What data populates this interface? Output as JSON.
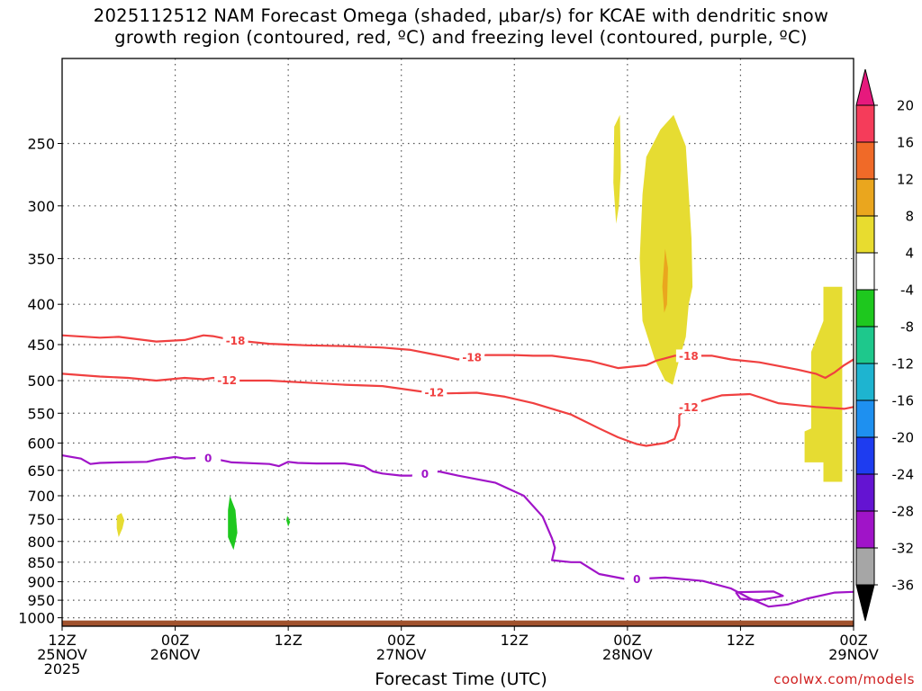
{
  "chart_data": {
    "type": "contour",
    "title": [
      "2025112512 NAM Forecast Omega (shaded, μbar/s) for KCAE with dendritic snow",
      "growth region (contoured, red, ºC) and freezing level (contoured, purple, ºC)"
    ],
    "xlabel": "Forecast Time (UTC)",
    "ylabel": "",
    "credit": "coolwx.com/models",
    "x_ticks": [
      {
        "h": 0,
        "l1": "12Z",
        "l2": "25NOV",
        "l3": "2025"
      },
      {
        "h": 12,
        "l1": "00Z",
        "l2": "26NOV",
        "l3": ""
      },
      {
        "h": 24,
        "l1": "12Z",
        "l2": "",
        "l3": ""
      },
      {
        "h": 36,
        "l1": "00Z",
        "l2": "27NOV",
        "l3": ""
      },
      {
        "h": 48,
        "l1": "12Z",
        "l2": "",
        "l3": ""
      },
      {
        "h": 60,
        "l1": "00Z",
        "l2": "28NOV",
        "l3": ""
      },
      {
        "h": 72,
        "l1": "12Z",
        "l2": "",
        "l3": ""
      },
      {
        "h": 84,
        "l1": "00Z",
        "l2": "29NOV",
        "l3": ""
      }
    ],
    "y_ticks": [
      250,
      300,
      350,
      400,
      450,
      500,
      550,
      600,
      650,
      700,
      750,
      800,
      850,
      900,
      950,
      1000
    ],
    "y_range_hPa": [
      195,
      1025
    ],
    "x_range_hours": [
      0,
      84
    ],
    "grid": true,
    "colorbar": {
      "labels": [
        "20",
        "16",
        "12",
        "8",
        "4",
        "-4",
        "-8",
        "-12",
        "-16",
        "-20",
        "-24",
        "-28",
        "-32",
        "-36"
      ],
      "colors": [
        "#f53c5a",
        "#f06a28",
        "#eaa61e",
        "#e8dc2f",
        "#ffffff",
        "#1ec81e",
        "#1ec88c",
        "#1eb4d0",
        "#1e90f0",
        "#1e3cf0",
        "#6414d2",
        "#a014c8",
        "#a6a6a6"
      ],
      "top_arrow": "#e6197d",
      "bottom_arrow": "#000000"
    },
    "contours": [
      {
        "name": "-18",
        "color": "#f04040",
        "labels_at_hours": [
          18.4,
          43.5,
          66.5
        ],
        "points": [
          [
            0,
            438
          ],
          [
            4,
            441
          ],
          [
            6,
            440
          ],
          [
            10,
            446
          ],
          [
            13,
            444
          ],
          [
            15,
            438
          ],
          [
            16,
            439
          ],
          [
            18,
            444
          ],
          [
            22,
            449
          ],
          [
            26,
            451
          ],
          [
            30,
            452
          ],
          [
            34,
            454
          ],
          [
            37,
            457
          ],
          [
            39,
            462
          ],
          [
            41,
            467
          ],
          [
            42,
            470
          ],
          [
            45,
            464
          ],
          [
            48,
            464
          ],
          [
            50,
            465
          ],
          [
            52,
            465
          ],
          [
            56,
            472
          ],
          [
            59,
            482
          ],
          [
            62,
            478
          ],
          [
            63,
            472
          ],
          [
            65,
            465
          ],
          [
            69,
            465
          ],
          [
            71,
            470
          ],
          [
            74,
            474
          ],
          [
            78,
            484
          ],
          [
            80,
            490
          ],
          [
            81,
            496
          ],
          [
            82,
            488
          ],
          [
            83,
            478
          ],
          [
            84,
            470
          ]
        ]
      },
      {
        "name": "-12",
        "color": "#f04040",
        "labels_at_hours": [
          17.5,
          39.5,
          66.5
        ],
        "points": [
          [
            0,
            490
          ],
          [
            4,
            494
          ],
          [
            7,
            496
          ],
          [
            10,
            500
          ],
          [
            13,
            496
          ],
          [
            15,
            498
          ],
          [
            16,
            496
          ],
          [
            18,
            500
          ],
          [
            22,
            500
          ],
          [
            26,
            503
          ],
          [
            30,
            506
          ],
          [
            34,
            508
          ],
          [
            38,
            516
          ],
          [
            41,
            519
          ],
          [
            44,
            518
          ],
          [
            47,
            524
          ],
          [
            50,
            534
          ],
          [
            54,
            552
          ],
          [
            57,
            575
          ],
          [
            59,
            590
          ],
          [
            61,
            602
          ],
          [
            62,
            605
          ],
          [
            64,
            600
          ],
          [
            65,
            593
          ],
          [
            65.5,
            570
          ],
          [
            65.5,
            553
          ],
          [
            66.5,
            540
          ],
          [
            68,
            530
          ],
          [
            70,
            522
          ],
          [
            73,
            520
          ],
          [
            76,
            534
          ],
          [
            80,
            540
          ],
          [
            83,
            543
          ],
          [
            84,
            540
          ]
        ]
      },
      {
        "name": "0",
        "color": "#a014c8",
        "labels_at_hours": [
          15.5,
          38.5,
          61
        ],
        "points": [
          [
            0,
            622
          ],
          [
            2,
            628
          ],
          [
            3,
            638
          ],
          [
            4,
            636
          ],
          [
            6,
            635
          ],
          [
            9,
            634
          ],
          [
            10,
            630
          ],
          [
            12,
            625
          ],
          [
            13,
            628
          ],
          [
            14,
            627
          ],
          [
            15,
            625
          ],
          [
            16,
            628
          ],
          [
            18,
            635
          ],
          [
            22,
            638
          ],
          [
            23,
            642
          ],
          [
            24,
            634
          ],
          [
            25,
            636
          ],
          [
            27,
            637
          ],
          [
            30,
            637
          ],
          [
            32,
            642
          ],
          [
            33,
            652
          ],
          [
            34,
            656
          ],
          [
            36,
            660
          ],
          [
            37,
            660
          ],
          [
            38,
            658
          ],
          [
            40,
            652
          ],
          [
            42,
            660
          ],
          [
            46,
            674
          ],
          [
            49,
            700
          ],
          [
            51,
            744
          ],
          [
            52,
            793
          ],
          [
            52.3,
            815
          ],
          [
            52,
            845
          ],
          [
            54,
            850
          ],
          [
            55,
            850
          ],
          [
            57,
            880
          ],
          [
            60,
            894
          ],
          [
            64,
            889
          ],
          [
            68,
            898
          ],
          [
            71,
            918
          ],
          [
            73,
            945
          ],
          [
            75,
            968
          ],
          [
            77,
            962
          ],
          [
            79,
            946
          ],
          [
            82,
            929
          ],
          [
            84,
            927
          ]
        ]
      },
      {
        "name": "0-loop",
        "color": "#a014c8",
        "labels_at_hours": [],
        "points": [
          [
            71.5,
            928
          ],
          [
            75.5,
            926
          ],
          [
            76.5,
            938
          ],
          [
            74,
            950
          ],
          [
            72,
            946
          ],
          [
            71.5,
            928
          ]
        ]
      }
    ],
    "shaded_regions": [
      {
        "color": "#e6dc32",
        "points": [
          [
            58.6,
            238
          ],
          [
            59.2,
            230
          ],
          [
            59.3,
            270
          ],
          [
            59.1,
            300
          ],
          [
            58.8,
            316
          ],
          [
            58.5,
            280
          ]
        ]
      },
      {
        "color": "#e6dc32",
        "points": [
          [
            64.9,
            230
          ],
          [
            66.2,
            252
          ],
          [
            66.8,
            330
          ],
          [
            66.9,
            380
          ],
          [
            66.5,
            400
          ],
          [
            66.2,
            440
          ],
          [
            65.5,
            470
          ],
          [
            64.8,
            506
          ],
          [
            64.0,
            500
          ],
          [
            62.9,
            470
          ],
          [
            61.6,
            420
          ],
          [
            61.3,
            350
          ],
          [
            61.6,
            290
          ],
          [
            62.0,
            260
          ],
          [
            63.5,
            240
          ]
        ]
      },
      {
        "color": "#e6dc32",
        "points": [
          [
            80.8,
            380
          ],
          [
            82.8,
            380
          ],
          [
            82.8,
            490
          ],
          [
            82.8,
            672
          ],
          [
            80.8,
            672
          ],
          [
            80.8,
            635
          ],
          [
            78.8,
            635
          ],
          [
            78.8,
            580
          ],
          [
            79.5,
            575
          ],
          [
            79.5,
            460
          ],
          [
            80.8,
            420
          ]
        ]
      },
      {
        "color": "#e6dc32",
        "points": [
          [
            5.8,
            742
          ],
          [
            6.3,
            736
          ],
          [
            6.6,
            752
          ],
          [
            6.4,
            770
          ],
          [
            6.0,
            790
          ],
          [
            5.8,
            770
          ]
        ]
      },
      {
        "color": "#eaa61e",
        "points": [
          [
            64.0,
            340
          ],
          [
            64.3,
            360
          ],
          [
            64.2,
            400
          ],
          [
            63.9,
            410
          ],
          [
            63.7,
            380
          ]
        ]
      },
      {
        "color": "#1ec81e",
        "points": [
          [
            17.8,
            700
          ],
          [
            18.4,
            730
          ],
          [
            18.6,
            780
          ],
          [
            18.2,
            820
          ],
          [
            17.6,
            790
          ],
          [
            17.6,
            730
          ]
        ]
      },
      {
        "color": "#1ec81e",
        "points": [
          [
            23.9,
            742
          ],
          [
            24.2,
            756
          ],
          [
            24.0,
            766
          ],
          [
            23.8,
            752
          ]
        ]
      }
    ],
    "surface": {
      "color": "#a0522d",
      "top_hPa": 1008
    }
  }
}
